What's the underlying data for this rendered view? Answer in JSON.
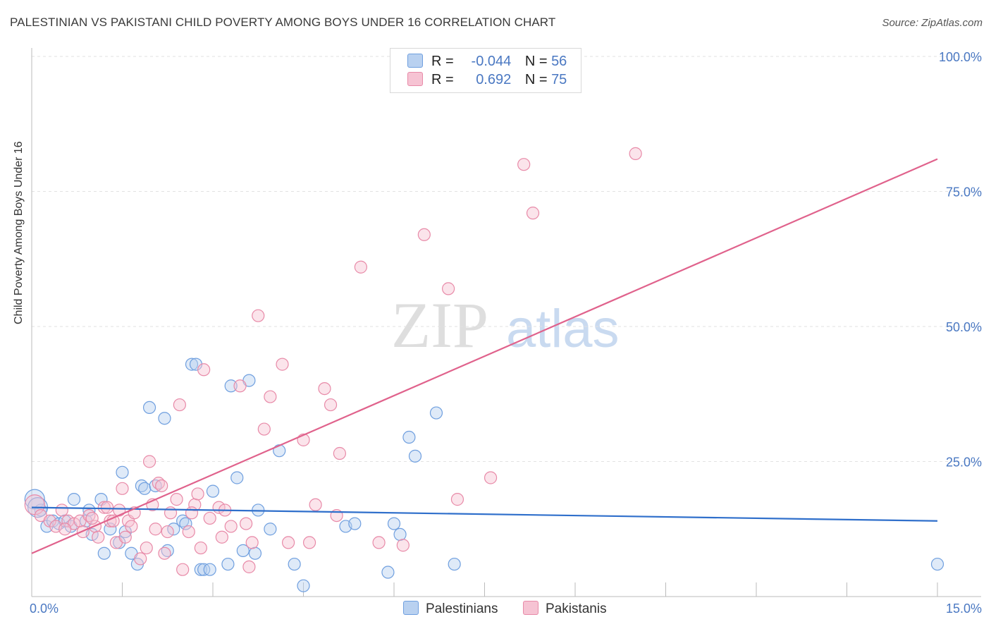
{
  "title": "PALESTINIAN VS PAKISTANI CHILD POVERTY AMONG BOYS UNDER 16 CORRELATION CHART",
  "source": "Source: ZipAtlas.com",
  "watermark": {
    "zip": "ZIP",
    "atlas": "atlas"
  },
  "legend": {
    "rows": [
      {
        "r_label": "R =",
        "r_value": "-0.044",
        "n_label": "N =",
        "n_value": "56"
      },
      {
        "r_label": "R =",
        "r_value": "0.692",
        "n_label": "N =",
        "n_value": "75"
      }
    ]
  },
  "chart_data": {
    "type": "scatter",
    "xlabel": "",
    "ylabel": "Child Poverty Among Boys Under 16",
    "xlim": [
      0,
      15
    ],
    "ylim": [
      0,
      100
    ],
    "x_tick_labels": [
      {
        "value": 0,
        "label": "0.0%"
      },
      {
        "value": 15,
        "label": "15.0%"
      }
    ],
    "y_tick_labels": [
      {
        "value": 25,
        "label": "25.0%"
      },
      {
        "value": 50,
        "label": "50.0%"
      },
      {
        "value": 75,
        "label": "75.0%"
      },
      {
        "value": 100,
        "label": "100.0%"
      }
    ],
    "grid": "horizontal-dashed",
    "legend_position": "top-center",
    "series": [
      {
        "name": "Palestinians",
        "color": "#6f9fdf",
        "fill": "#b9d1f0",
        "line_color": "#2f6fcb",
        "trend": [
          [
            0,
            16.5
          ],
          [
            15,
            14.0
          ]
        ],
        "points": [
          [
            0.05,
            18
          ],
          [
            0.15,
            16
          ],
          [
            0.25,
            13
          ],
          [
            0.35,
            14
          ],
          [
            0.45,
            13.5
          ],
          [
            0.55,
            14
          ],
          [
            0.65,
            13
          ],
          [
            0.7,
            18
          ],
          [
            0.9,
            14
          ],
          [
            1.0,
            11.5
          ],
          [
            0.95,
            16
          ],
          [
            1.15,
            18
          ],
          [
            1.3,
            12.5
          ],
          [
            1.2,
            8
          ],
          [
            1.45,
            10
          ],
          [
            1.5,
            23
          ],
          [
            1.55,
            12
          ],
          [
            1.65,
            8
          ],
          [
            1.75,
            6
          ],
          [
            1.82,
            20.5
          ],
          [
            1.87,
            20
          ],
          [
            1.95,
            35
          ],
          [
            2.05,
            20.5
          ],
          [
            2.2,
            33
          ],
          [
            2.25,
            8.5
          ],
          [
            2.35,
            12.5
          ],
          [
            2.5,
            14
          ],
          [
            2.55,
            13.5
          ],
          [
            2.65,
            43
          ],
          [
            2.72,
            43
          ],
          [
            2.8,
            5
          ],
          [
            2.85,
            5
          ],
          [
            2.95,
            5
          ],
          [
            3.0,
            19.5
          ],
          [
            3.25,
            6
          ],
          [
            3.3,
            39
          ],
          [
            3.4,
            22
          ],
          [
            3.5,
            8.5
          ],
          [
            3.6,
            40
          ],
          [
            3.7,
            8
          ],
          [
            3.75,
            16
          ],
          [
            3.95,
            12.5
          ],
          [
            4.1,
            27
          ],
          [
            4.35,
            6
          ],
          [
            4.5,
            2
          ],
          [
            5.2,
            13
          ],
          [
            5.35,
            13.5
          ],
          [
            5.9,
            4.5
          ],
          [
            6.0,
            13.5
          ],
          [
            6.1,
            11.5
          ],
          [
            6.25,
            29.5
          ],
          [
            6.35,
            26
          ],
          [
            6.7,
            34
          ],
          [
            7.0,
            6
          ],
          [
            15.0,
            6
          ],
          [
            0.1,
            16.5
          ]
        ]
      },
      {
        "name": "Pakistanis",
        "color": "#e88aa8",
        "fill": "#f6c3d3",
        "line_color": "#e0628c",
        "trend": [
          [
            0,
            8
          ],
          [
            15,
            81
          ]
        ],
        "points": [
          [
            0.05,
            17
          ],
          [
            0.15,
            15
          ],
          [
            0.3,
            14
          ],
          [
            0.4,
            13
          ],
          [
            0.5,
            16
          ],
          [
            0.6,
            14
          ],
          [
            0.7,
            13.5
          ],
          [
            0.8,
            14
          ],
          [
            0.85,
            12
          ],
          [
            0.95,
            15
          ],
          [
            1.05,
            13
          ],
          [
            1.1,
            11
          ],
          [
            1.2,
            16.5
          ],
          [
            1.3,
            14
          ],
          [
            1.4,
            10
          ],
          [
            1.45,
            16
          ],
          [
            1.5,
            20
          ],
          [
            1.6,
            14
          ],
          [
            1.65,
            13
          ],
          [
            1.7,
            15.5
          ],
          [
            1.8,
            7
          ],
          [
            1.9,
            9
          ],
          [
            1.95,
            25
          ],
          [
            2.0,
            17
          ],
          [
            2.1,
            21
          ],
          [
            2.15,
            20.5
          ],
          [
            2.2,
            8
          ],
          [
            2.25,
            12
          ],
          [
            2.3,
            15.5
          ],
          [
            2.4,
            18
          ],
          [
            2.45,
            35.5
          ],
          [
            2.5,
            5
          ],
          [
            2.6,
            12
          ],
          [
            2.7,
            17
          ],
          [
            2.75,
            19
          ],
          [
            2.8,
            9
          ],
          [
            2.85,
            42
          ],
          [
            2.95,
            14.5
          ],
          [
            3.1,
            16.5
          ],
          [
            3.2,
            16
          ],
          [
            3.3,
            13
          ],
          [
            3.45,
            39
          ],
          [
            3.55,
            13.5
          ],
          [
            3.6,
            5.5
          ],
          [
            3.65,
            10
          ],
          [
            3.75,
            52
          ],
          [
            3.85,
            31
          ],
          [
            3.95,
            37
          ],
          [
            4.15,
            43
          ],
          [
            4.25,
            10
          ],
          [
            4.5,
            29
          ],
          [
            4.6,
            10
          ],
          [
            4.7,
            17
          ],
          [
            4.85,
            38.5
          ],
          [
            4.95,
            35.5
          ],
          [
            5.05,
            15
          ],
          [
            5.1,
            26.5
          ],
          [
            5.45,
            61
          ],
          [
            5.75,
            10
          ],
          [
            6.15,
            9.5
          ],
          [
            6.5,
            67
          ],
          [
            6.9,
            57
          ],
          [
            7.05,
            18
          ],
          [
            7.6,
            22
          ],
          [
            8.15,
            80
          ],
          [
            8.3,
            71
          ],
          [
            10.0,
            82
          ],
          [
            1.0,
            14.5
          ],
          [
            1.25,
            16.5
          ],
          [
            1.35,
            14
          ],
          [
            1.55,
            11
          ],
          [
            2.05,
            12.5
          ],
          [
            2.65,
            15.5
          ],
          [
            3.15,
            11
          ],
          [
            0.55,
            12.5
          ]
        ]
      }
    ]
  }
}
